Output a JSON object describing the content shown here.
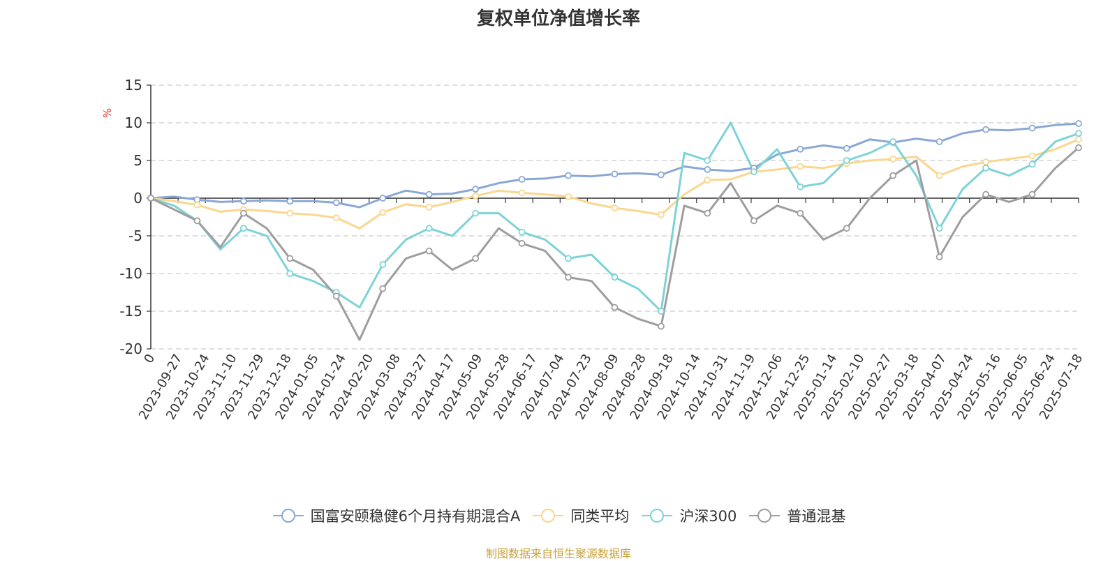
{
  "chart_data": {
    "type": "line",
    "title": "复权单位净值增长率",
    "ylabel": "%",
    "ylim": [
      -20,
      15
    ],
    "yticks": [
      15,
      10,
      5,
      0,
      -5,
      -10,
      -15,
      -20
    ],
    "grid": true,
    "legend_position": "bottom",
    "x_tick_labels": [
      "0",
      "2023-09-27",
      "2023-10-24",
      "2023-11-10",
      "2023-11-29",
      "2023-12-18",
      "2024-01-05",
      "2024-01-24",
      "2024-02-20",
      "2024-03-08",
      "2024-03-27",
      "2024-04-17",
      "2024-05-09",
      "2024-05-28",
      "2024-06-17",
      "2024-07-04",
      "2024-07-23",
      "2024-08-09",
      "2024-08-28",
      "2024-09-18",
      "2024-10-14",
      "2024-10-31",
      "2024-11-19",
      "2024-12-06",
      "2024-12-25",
      "2025-01-14",
      "2025-02-10",
      "2025-02-27",
      "2025-03-18",
      "2025-04-07",
      "2025-04-24",
      "2025-05-16",
      "2025-06-05",
      "2025-06-24",
      "2025-07-18"
    ],
    "series": [
      {
        "name": "国富安颐稳健6个月持有期混合A",
        "color": "#8aa8d6",
        "values": [
          0,
          0.2,
          -0.2,
          -0.5,
          -0.4,
          -0.3,
          -0.4,
          -0.4,
          -0.6,
          -1.2,
          0.0,
          1.0,
          0.5,
          0.6,
          1.2,
          2.0,
          2.5,
          2.6,
          3.0,
          2.9,
          3.2,
          3.3,
          3.1,
          4.2,
          3.8,
          3.6,
          4.0,
          5.8,
          6.5,
          7.0,
          6.6,
          7.8,
          7.4,
          7.9,
          7.5,
          8.6,
          9.1,
          9.0,
          9.3,
          9.7,
          9.9
        ]
      },
      {
        "name": "同类平均",
        "color": "#fbd68e",
        "values": [
          0,
          -0.4,
          -0.9,
          -1.8,
          -1.5,
          -1.7,
          -2.0,
          -2.2,
          -2.6,
          -4.0,
          -1.9,
          -0.8,
          -1.2,
          -0.5,
          0.3,
          1.0,
          0.7,
          0.5,
          0.2,
          -0.7,
          -1.3,
          -1.7,
          -2.2,
          0.5,
          2.4,
          2.5,
          3.5,
          3.8,
          4.2,
          4.0,
          4.6,
          5.0,
          5.2,
          5.5,
          3.0,
          4.2,
          4.8,
          5.2,
          5.6,
          6.5,
          7.8
        ]
      },
      {
        "name": "沪深300",
        "color": "#7ed3d6",
        "values": [
          0,
          -1.0,
          -3.0,
          -6.8,
          -4.0,
          -5.0,
          -10.0,
          -11.0,
          -12.5,
          -14.5,
          -8.8,
          -5.5,
          -4.0,
          -5.0,
          -2.0,
          -2.0,
          -4.5,
          -5.5,
          -8.0,
          -7.5,
          -10.5,
          -12.0,
          -15.0,
          6.0,
          5.0,
          10.0,
          3.5,
          6.5,
          1.5,
          2.0,
          5.0,
          6.0,
          7.5,
          3.0,
          -4.0,
          1.2,
          4.0,
          3.0,
          4.5,
          7.5,
          8.6
        ]
      },
      {
        "name": "普通混基",
        "color": "#9e9e9e",
        "values": [
          0,
          -1.5,
          -3.0,
          -6.5,
          -2.0,
          -4.0,
          -8.0,
          -9.5,
          -13.0,
          -18.8,
          -12.0,
          -8.0,
          -7.0,
          -9.5,
          -8.0,
          -4.0,
          -6.0,
          -7.0,
          -10.5,
          -11.0,
          -14.5,
          -16.0,
          -17.0,
          -1.0,
          -2.0,
          2.0,
          -3.0,
          -1.0,
          -2.0,
          -5.5,
          -4.0,
          0.0,
          3.0,
          5.0,
          -7.8,
          -2.5,
          0.5,
          -0.5,
          0.5,
          4.0,
          6.7
        ]
      }
    ]
  },
  "source_note": "制图数据来自恒生聚源数据库"
}
